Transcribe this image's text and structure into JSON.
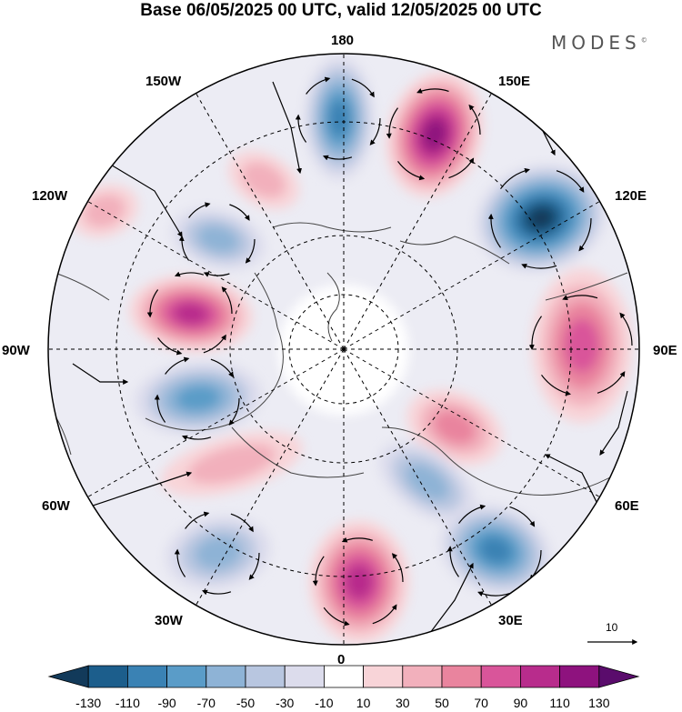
{
  "title": "Base 06/05/2025 00 UTC, valid 12/05/2025 00 UTC",
  "brand": "MODES",
  "brand_mark": "©",
  "longitude_labels": {
    "lon_180": "180",
    "lon_150E": "150E",
    "lon_120E": "120E",
    "lon_90E": "90E",
    "lon_60E": "60E",
    "lon_30E": "30E",
    "lon_0": "0",
    "lon_30W": "30W",
    "lon_60W": "60W",
    "lon_90W": "90W",
    "lon_120W": "120W",
    "lon_150W": "150W"
  },
  "vector_scale_label": "10",
  "colorbar": {
    "ticks": [
      "-130",
      "-110",
      "-90",
      "-70",
      "-50",
      "-30",
      "-10",
      "10",
      "30",
      "50",
      "70",
      "90",
      "110",
      "130"
    ],
    "colors": [
      "#123a5a",
      "#1c5e8c",
      "#3a82b4",
      "#5a9cc8",
      "#8eb3d6",
      "#b8c6e0",
      "#dcdcec",
      "#ffffff",
      "#f8d4d8",
      "#f2b0bc",
      "#e9849e",
      "#d9559a",
      "#b82c8c",
      "#8e127e",
      "#5a0c6c"
    ]
  },
  "anomalies": [
    {
      "name": "low-north-180",
      "value": -95
    },
    {
      "name": "high-150E",
      "value": 120
    },
    {
      "name": "low-120E",
      "value": -130
    },
    {
      "name": "high-90E",
      "value": 85
    },
    {
      "name": "high-60E-inner",
      "value": 55
    },
    {
      "name": "low-60E",
      "value": -60
    },
    {
      "name": "low-30E",
      "value": -95
    },
    {
      "name": "high-0",
      "value": 95
    },
    {
      "name": "low-30W",
      "value": -55
    },
    {
      "name": "high-60W",
      "value": 40
    },
    {
      "name": "low-90W",
      "value": -75
    },
    {
      "name": "high-110W",
      "value": 100
    },
    {
      "name": "low-130W",
      "value": -60
    },
    {
      "name": "high-140W",
      "value": 30
    },
    {
      "name": "high-130W-edge",
      "value": 30
    }
  ]
}
